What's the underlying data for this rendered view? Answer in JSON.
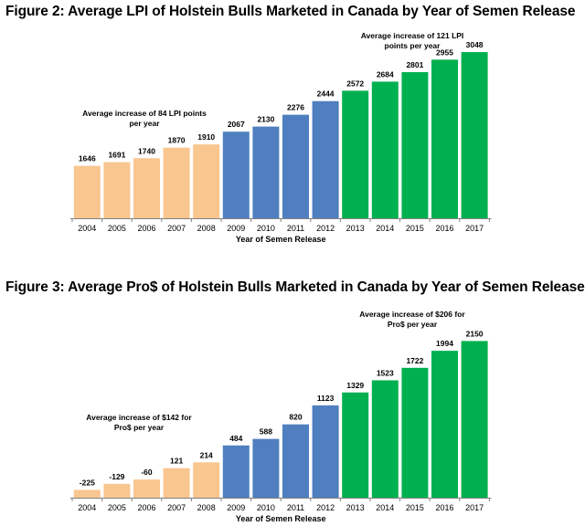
{
  "charts": [
    {
      "id": "fig2",
      "title": "Figure 2: Average LPI of Holstein Bulls Marketed in Canada by Year of Semen Release",
      "xlabel": "Year of Semen Release",
      "annotations": [
        {
          "lines": [
            "Average increase of 84 LPI points",
            "per year"
          ],
          "group": "early"
        },
        {
          "lines": [
            "Average increase of 121 LPI",
            "points per year"
          ],
          "group": "late"
        }
      ]
    },
    {
      "id": "fig3",
      "title": "Figure 3: Average Pro$ of Holstein Bulls Marketed in Canada by Year of Semen Release",
      "xlabel": "Year of Semen Release",
      "annotations": [
        {
          "lines": [
            "Average increase of $142 for",
            "Pro$ per year"
          ],
          "group": "early"
        },
        {
          "lines": [
            "Average increase of $206 for",
            "Pro$ per year"
          ],
          "group": "late"
        }
      ]
    }
  ],
  "chart_data": [
    {
      "type": "bar",
      "title": "Figure 2: Average LPI of Holstein Bulls Marketed in Canada by Year of Semen Release",
      "xlabel": "Year of Semen Release",
      "ylabel": "",
      "categories": [
        "2004",
        "2005",
        "2006",
        "2007",
        "2008",
        "2009",
        "2010",
        "2011",
        "2012",
        "2013",
        "2014",
        "2015",
        "2016",
        "2017"
      ],
      "values": [
        1646,
        1691,
        1740,
        1870,
        1910,
        2067,
        2130,
        2276,
        2444,
        2572,
        2684,
        2801,
        2955,
        3048
      ],
      "ylim": [
        1000,
        3150
      ],
      "grid": false,
      "colors": {
        "2004-2008": "#f9c690",
        "2009-2012": "#4f7fbf",
        "2013-2017": "#00b050"
      },
      "annotations": [
        "Average increase of 84 LPI points per year",
        "Average increase of 121 LPI points per year"
      ]
    },
    {
      "type": "bar",
      "title": "Figure 3: Average Pro$ of Holstein Bulls Marketed in Canada by Year of Semen Release",
      "xlabel": "Year of Semen Release",
      "ylabel": "",
      "categories": [
        "2004",
        "2005",
        "2006",
        "2007",
        "2008",
        "2009",
        "2010",
        "2011",
        "2012",
        "2013",
        "2014",
        "2015",
        "2016",
        "2017"
      ],
      "values": [
        -225,
        -129,
        -60,
        121,
        214,
        484,
        588,
        820,
        1123,
        1329,
        1523,
        1722,
        1994,
        2150
      ],
      "ylim": [
        -350,
        2200
      ],
      "grid": false,
      "colors": {
        "2004-2008": "#f9c690",
        "2009-2012": "#4f7fbf",
        "2013-2017": "#00b050"
      },
      "annotations": [
        "Average increase of $142 for Pro$ per year",
        "Average increase of $206 for Pro$ per year"
      ]
    }
  ]
}
